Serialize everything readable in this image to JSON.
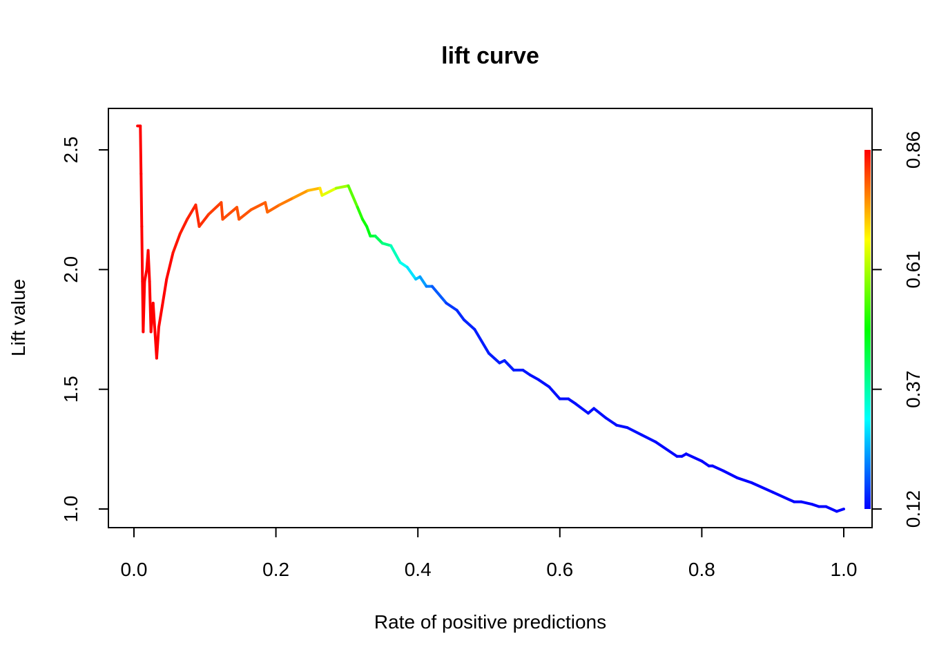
{
  "chart_data": {
    "type": "line",
    "title": "lift curve",
    "xlabel": "Rate of positive predictions",
    "ylabel": "Lift value",
    "xlim": [
      0.0,
      1.0
    ],
    "ylim": [
      1.0,
      2.6
    ],
    "xticks": [
      "0.0",
      "0.2",
      "0.4",
      "0.6",
      "0.8",
      "1.0"
    ],
    "yticks": [
      "1.0",
      "1.5",
      "2.0",
      "2.5"
    ],
    "colorbar": {
      "ticks": [
        "0.12",
        "0.37",
        "0.61",
        "0.86"
      ],
      "range": [
        0.12,
        0.86
      ],
      "colors": [
        "#0000ff",
        "#00ffff",
        "#00ff00",
        "#ffff00",
        "#ff0000"
      ]
    },
    "grid": false,
    "series": [
      {
        "points": [
          [
            0.005,
            2.6,
            0.86
          ],
          [
            0.009,
            2.6,
            0.86
          ],
          [
            0.01,
            2.4,
            0.86
          ],
          [
            0.011,
            2.18,
            0.86
          ],
          [
            0.012,
            1.95,
            0.86
          ],
          [
            0.013,
            1.74,
            0.86
          ],
          [
            0.015,
            1.95,
            0.86
          ],
          [
            0.018,
            2.0,
            0.86
          ],
          [
            0.02,
            2.08,
            0.86
          ],
          [
            0.022,
            1.95,
            0.86
          ],
          [
            0.024,
            1.74,
            0.86
          ],
          [
            0.027,
            1.86,
            0.86
          ],
          [
            0.032,
            1.63,
            0.86
          ],
          [
            0.035,
            1.76,
            0.86
          ],
          [
            0.04,
            1.85,
            0.86
          ],
          [
            0.046,
            1.96,
            0.86
          ],
          [
            0.055,
            2.07,
            0.85
          ],
          [
            0.065,
            2.15,
            0.84
          ],
          [
            0.075,
            2.21,
            0.84
          ],
          [
            0.087,
            2.27,
            0.83
          ],
          [
            0.092,
            2.18,
            0.83
          ],
          [
            0.105,
            2.23,
            0.82
          ],
          [
            0.123,
            2.28,
            0.81
          ],
          [
            0.125,
            2.21,
            0.81
          ],
          [
            0.145,
            2.26,
            0.8
          ],
          [
            0.148,
            2.21,
            0.8
          ],
          [
            0.165,
            2.25,
            0.8
          ],
          [
            0.185,
            2.28,
            0.79
          ],
          [
            0.188,
            2.24,
            0.79
          ],
          [
            0.205,
            2.27,
            0.78
          ],
          [
            0.225,
            2.3,
            0.76
          ],
          [
            0.245,
            2.33,
            0.74
          ],
          [
            0.262,
            2.34,
            0.71
          ],
          [
            0.265,
            2.31,
            0.68
          ],
          [
            0.285,
            2.34,
            0.63
          ],
          [
            0.302,
            2.35,
            0.58
          ],
          [
            0.315,
            2.26,
            0.53
          ],
          [
            0.322,
            2.21,
            0.51
          ],
          [
            0.328,
            2.18,
            0.49
          ],
          [
            0.333,
            2.14,
            0.47
          ],
          [
            0.34,
            2.14,
            0.44
          ],
          [
            0.35,
            2.11,
            0.41
          ],
          [
            0.362,
            2.1,
            0.38
          ],
          [
            0.375,
            2.03,
            0.33
          ],
          [
            0.385,
            2.01,
            0.3
          ],
          [
            0.397,
            1.96,
            0.27
          ],
          [
            0.403,
            1.97,
            0.25
          ],
          [
            0.412,
            1.93,
            0.22
          ],
          [
            0.42,
            1.93,
            0.2
          ],
          [
            0.44,
            1.86,
            0.17
          ],
          [
            0.455,
            1.83,
            0.15
          ],
          [
            0.465,
            1.79,
            0.15
          ],
          [
            0.48,
            1.75,
            0.14
          ],
          [
            0.5,
            1.65,
            0.14
          ],
          [
            0.515,
            1.61,
            0.14
          ],
          [
            0.522,
            1.62,
            0.14
          ],
          [
            0.535,
            1.58,
            0.14
          ],
          [
            0.548,
            1.58,
            0.14
          ],
          [
            0.558,
            1.56,
            0.13
          ],
          [
            0.57,
            1.54,
            0.13
          ],
          [
            0.585,
            1.51,
            0.13
          ],
          [
            0.6,
            1.46,
            0.13
          ],
          [
            0.612,
            1.46,
            0.13
          ],
          [
            0.622,
            1.44,
            0.13
          ],
          [
            0.64,
            1.4,
            0.13
          ],
          [
            0.648,
            1.42,
            0.13
          ],
          [
            0.665,
            1.38,
            0.13
          ],
          [
            0.68,
            1.35,
            0.13
          ],
          [
            0.695,
            1.34,
            0.13
          ],
          [
            0.715,
            1.31,
            0.13
          ],
          [
            0.735,
            1.28,
            0.13
          ],
          [
            0.765,
            1.22,
            0.12
          ],
          [
            0.772,
            1.22,
            0.12
          ],
          [
            0.778,
            1.23,
            0.12
          ],
          [
            0.8,
            1.2,
            0.12
          ],
          [
            0.81,
            1.18,
            0.12
          ],
          [
            0.815,
            1.18,
            0.12
          ],
          [
            0.83,
            1.16,
            0.12
          ],
          [
            0.85,
            1.13,
            0.12
          ],
          [
            0.87,
            1.11,
            0.12
          ],
          [
            0.9,
            1.07,
            0.12
          ],
          [
            0.93,
            1.03,
            0.12
          ],
          [
            0.94,
            1.03,
            0.12
          ],
          [
            0.955,
            1.02,
            0.12
          ],
          [
            0.965,
            1.01,
            0.12
          ],
          [
            0.975,
            1.01,
            0.12
          ],
          [
            0.99,
            0.99,
            0.12
          ],
          [
            1.0,
            1.0,
            0.12
          ]
        ]
      }
    ]
  }
}
